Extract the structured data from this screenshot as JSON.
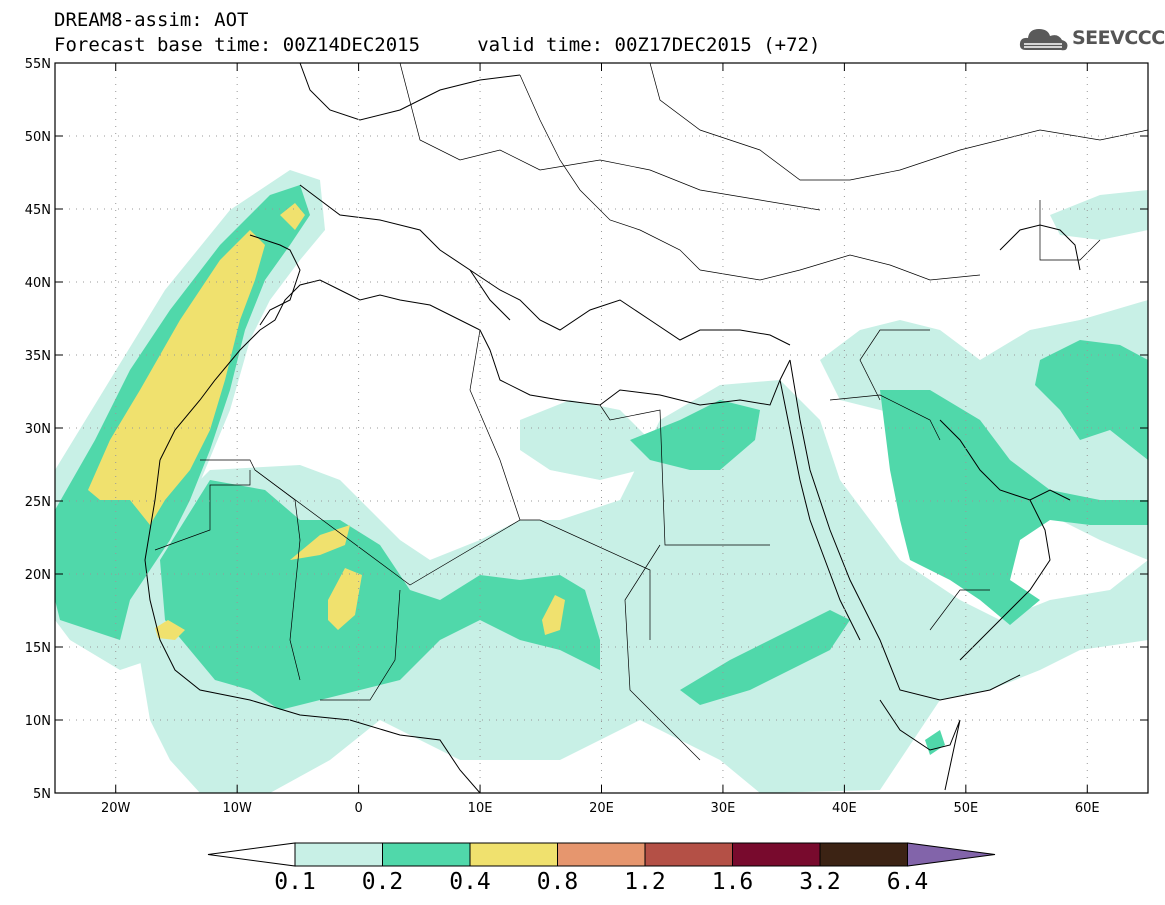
{
  "header": {
    "title_line1": "DREAM8-assim: AOT",
    "title_line2": "Forecast base time: 00Z14DEC2015     valid time: 00Z17DEC2015 (+72)",
    "logo_text": "SEEVCCC"
  },
  "map": {
    "lat_labels": [
      "55N",
      "50N",
      "45N",
      "40N",
      "35N",
      "30N",
      "25N",
      "20N",
      "15N",
      "10N",
      "5N"
    ],
    "lon_labels": [
      "20W",
      "10W",
      "0",
      "10E",
      "20E",
      "30E",
      "40E",
      "50E",
      "60E"
    ],
    "extent": {
      "lon_min": -25,
      "lon_max": 65,
      "lat_min": 5,
      "lat_max": 55
    }
  },
  "legend": {
    "levels": [
      "0.1",
      "0.2",
      "0.4",
      "0.8",
      "1.2",
      "1.6",
      "3.2",
      "6.4"
    ],
    "colors": [
      "#ffffff",
      "#c8f0e6",
      "#50d8aa",
      "#f0e16e",
      "#e6966e",
      "#b45046",
      "#780a2d",
      "#3c2314",
      "#8264aa"
    ]
  }
}
